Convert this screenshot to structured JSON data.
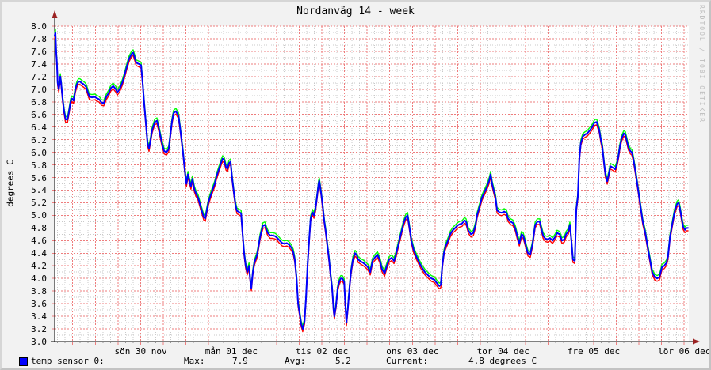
{
  "title": "Nordanväg 14 - week",
  "watermark": "RRDTOOL / TOBI OETIKER",
  "colors": {
    "background": "#f2f2f2",
    "plot_background": "#ffffff",
    "axis": "#000000",
    "arrow": "#9b2222",
    "grid_major": "#ee7d7d",
    "grid_minor": "#c9c9c9",
    "series_avg": "#0000ff",
    "series_max": "#00ff00",
    "series_min": "#ff0000"
  },
  "chart_data": {
    "type": "line",
    "title": "Nordanväg 14 - week",
    "ylabel": "degrees C",
    "ylim": [
      3.0,
      8.0
    ],
    "y_major_step": 0.2,
    "y_minor_step": 0.1,
    "y_tick_labels": [
      "8.0",
      "7.8",
      "7.6",
      "7.4",
      "7.2",
      "7.0",
      "6.8",
      "6.6",
      "6.4",
      "6.2",
      "6.0",
      "5.8",
      "5.6",
      "5.4",
      "5.2",
      "5.0",
      "4.8",
      "4.6",
      "4.4",
      "4.2",
      "4.0",
      "3.8",
      "3.6",
      "3.4",
      "3.2",
      "3.0"
    ],
    "x_axis": {
      "unit": "time",
      "span_hours": 168,
      "t0_abs_hour": 13.23,
      "minor_grid_hours": 2,
      "major_grid_hours": 6,
      "day_labels": [
        {
          "label": "sön 30 nov",
          "noon_hour": 22.8
        },
        {
          "label": "mån 01 dec",
          "noon_hour": 46.8
        },
        {
          "label": "tis 02 dec",
          "noon_hour": 70.8
        },
        {
          "label": "ons 03 dec",
          "noon_hour": 94.8
        },
        {
          "label": "tor 04 dec",
          "noon_hour": 118.8
        },
        {
          "label": "fre 05 dec",
          "noon_hour": 142.8
        },
        {
          "label": "lör 06 dec",
          "noon_hour": 166.8
        }
      ]
    },
    "legend": {
      "swatch_color": "#0000ff",
      "label": "temp sensor 0:",
      "max_label": "Max:",
      "max_value": "7.9",
      "avg_label": "Avg:",
      "avg_value": "5.2",
      "current_label": "Current:",
      "current_value": "4.8 degrees C"
    },
    "series": [
      {
        "name": "temp sensor 0 (max)",
        "color": "#00ff00",
        "value_offset": 0.045,
        "width": 1.4
      },
      {
        "name": "temp sensor 0 (min)",
        "color": "#ff0000",
        "value_offset": -0.045,
        "width": 1.4
      },
      {
        "name": "temp sensor 0 (avg)",
        "color": "#0000ff",
        "value_offset": 0,
        "width": 2
      }
    ],
    "points_hours_temp": [
      [
        0.0,
        7.85
      ],
      [
        0.2,
        7.9
      ],
      [
        0.4,
        7.6
      ],
      [
        0.6,
        7.4
      ],
      [
        0.8,
        7.1
      ],
      [
        1.1,
        7.0
      ],
      [
        1.3,
        7.1
      ],
      [
        1.5,
        7.2
      ],
      [
        1.7,
        7.1
      ],
      [
        2.1,
        6.85
      ],
      [
        2.5,
        6.65
      ],
      [
        2.9,
        6.52
      ],
      [
        3.4,
        6.52
      ],
      [
        3.8,
        6.65
      ],
      [
        4.2,
        6.8
      ],
      [
        4.6,
        6.85
      ],
      [
        5.0,
        6.82
      ],
      [
        5.5,
        7.0
      ],
      [
        5.9,
        7.08
      ],
      [
        6.3,
        7.12
      ],
      [
        6.7,
        7.12
      ],
      [
        7.1,
        7.1
      ],
      [
        7.6,
        7.08
      ],
      [
        8.0,
        7.06
      ],
      [
        8.4,
        7.03
      ],
      [
        8.8,
        6.95
      ],
      [
        9.2,
        6.88
      ],
      [
        9.9,
        6.87
      ],
      [
        10.5,
        6.88
      ],
      [
        11.1,
        6.86
      ],
      [
        11.8,
        6.84
      ],
      [
        12.4,
        6.79
      ],
      [
        13.0,
        6.78
      ],
      [
        13.7,
        6.88
      ],
      [
        14.3,
        6.94
      ],
      [
        14.9,
        7.02
      ],
      [
        15.5,
        7.05
      ],
      [
        16.2,
        7.0
      ],
      [
        16.6,
        6.95
      ],
      [
        17.2,
        7.0
      ],
      [
        17.9,
        7.1
      ],
      [
        18.5,
        7.22
      ],
      [
        19.1,
        7.36
      ],
      [
        19.7,
        7.48
      ],
      [
        20.4,
        7.56
      ],
      [
        20.8,
        7.58
      ],
      [
        21.2,
        7.5
      ],
      [
        21.6,
        7.42
      ],
      [
        22.3,
        7.4
      ],
      [
        22.9,
        7.38
      ],
      [
        23.3,
        7.1
      ],
      [
        23.7,
        6.78
      ],
      [
        24.2,
        6.44
      ],
      [
        24.6,
        6.15
      ],
      [
        25.0,
        6.06
      ],
      [
        25.4,
        6.2
      ],
      [
        25.8,
        6.35
      ],
      [
        26.5,
        6.48
      ],
      [
        27.1,
        6.5
      ],
      [
        27.7,
        6.35
      ],
      [
        28.4,
        6.15
      ],
      [
        29.0,
        6.02
      ],
      [
        29.6,
        6.0
      ],
      [
        30.2,
        6.05
      ],
      [
        30.7,
        6.3
      ],
      [
        31.1,
        6.5
      ],
      [
        31.5,
        6.62
      ],
      [
        32.1,
        6.65
      ],
      [
        32.8,
        6.58
      ],
      [
        33.2,
        6.4
      ],
      [
        33.6,
        6.2
      ],
      [
        34.0,
        6.0
      ],
      [
        34.4,
        5.75
      ],
      [
        34.9,
        5.5
      ],
      [
        35.3,
        5.65
      ],
      [
        35.7,
        5.55
      ],
      [
        36.1,
        5.46
      ],
      [
        36.5,
        5.58
      ],
      [
        37.0,
        5.42
      ],
      [
        37.4,
        5.35
      ],
      [
        38.0,
        5.28
      ],
      [
        38.6,
        5.15
      ],
      [
        39.1,
        5.05
      ],
      [
        39.5,
        4.97
      ],
      [
        39.9,
        4.95
      ],
      [
        40.3,
        5.08
      ],
      [
        40.7,
        5.2
      ],
      [
        41.2,
        5.3
      ],
      [
        41.8,
        5.4
      ],
      [
        42.4,
        5.5
      ],
      [
        42.8,
        5.6
      ],
      [
        43.5,
        5.73
      ],
      [
        44.1,
        5.84
      ],
      [
        44.5,
        5.9
      ],
      [
        44.9,
        5.88
      ],
      [
        45.4,
        5.76
      ],
      [
        45.8,
        5.74
      ],
      [
        46.2,
        5.83
      ],
      [
        46.6,
        5.85
      ],
      [
        47.0,
        5.6
      ],
      [
        47.5,
        5.35
      ],
      [
        47.9,
        5.17
      ],
      [
        48.3,
        5.07
      ],
      [
        48.9,
        5.05
      ],
      [
        49.4,
        5.03
      ],
      [
        49.8,
        4.7
      ],
      [
        50.2,
        4.4
      ],
      [
        50.6,
        4.2
      ],
      [
        51.0,
        4.1
      ],
      [
        51.5,
        4.2
      ],
      [
        51.9,
        3.92
      ],
      [
        52.1,
        3.85
      ],
      [
        52.5,
        4.1
      ],
      [
        52.9,
        4.25
      ],
      [
        53.6,
        4.37
      ],
      [
        54.0,
        4.5
      ],
      [
        54.4,
        4.65
      ],
      [
        54.8,
        4.76
      ],
      [
        55.2,
        4.84
      ],
      [
        55.7,
        4.85
      ],
      [
        56.1,
        4.78
      ],
      [
        56.5,
        4.72
      ],
      [
        57.1,
        4.68
      ],
      [
        57.8,
        4.68
      ],
      [
        58.4,
        4.67
      ],
      [
        59.0,
        4.64
      ],
      [
        59.6,
        4.6
      ],
      [
        60.3,
        4.56
      ],
      [
        60.9,
        4.55
      ],
      [
        61.5,
        4.56
      ],
      [
        62.2,
        4.53
      ],
      [
        62.8,
        4.48
      ],
      [
        63.2,
        4.42
      ],
      [
        63.6,
        4.3
      ],
      [
        64.1,
        4.0
      ],
      [
        64.5,
        3.6
      ],
      [
        64.9,
        3.45
      ],
      [
        65.3,
        3.28
      ],
      [
        65.7,
        3.2
      ],
      [
        66.2,
        3.32
      ],
      [
        66.6,
        3.7
      ],
      [
        67.0,
        4.2
      ],
      [
        67.4,
        4.6
      ],
      [
        67.8,
        4.95
      ],
      [
        68.3,
        5.05
      ],
      [
        68.7,
        5.0
      ],
      [
        69.1,
        5.1
      ],
      [
        69.5,
        5.3
      ],
      [
        69.9,
        5.5
      ],
      [
        70.1,
        5.55
      ],
      [
        70.6,
        5.35
      ],
      [
        71.0,
        5.15
      ],
      [
        71.4,
        4.92
      ],
      [
        71.8,
        4.75
      ],
      [
        72.2,
        4.55
      ],
      [
        72.7,
        4.3
      ],
      [
        73.1,
        4.05
      ],
      [
        73.5,
        3.85
      ],
      [
        73.9,
        3.5
      ],
      [
        74.1,
        3.4
      ],
      [
        74.6,
        3.6
      ],
      [
        75.0,
        3.85
      ],
      [
        75.4,
        3.95
      ],
      [
        75.8,
        4.0
      ],
      [
        76.2,
        4.0
      ],
      [
        76.7,
        3.95
      ],
      [
        77.1,
        3.5
      ],
      [
        77.3,
        3.3
      ],
      [
        77.7,
        3.55
      ],
      [
        78.1,
        3.85
      ],
      [
        78.5,
        4.1
      ],
      [
        79.0,
        4.3
      ],
      [
        79.6,
        4.4
      ],
      [
        80.0,
        4.37
      ],
      [
        80.4,
        4.3
      ],
      [
        81.1,
        4.27
      ],
      [
        81.7,
        4.25
      ],
      [
        82.3,
        4.22
      ],
      [
        83.0,
        4.18
      ],
      [
        83.6,
        4.1
      ],
      [
        84.2,
        4.28
      ],
      [
        84.8,
        4.33
      ],
      [
        85.5,
        4.38
      ],
      [
        86.1,
        4.3
      ],
      [
        86.7,
        4.15
      ],
      [
        87.4,
        4.08
      ],
      [
        88.0,
        4.2
      ],
      [
        88.6,
        4.3
      ],
      [
        89.3,
        4.33
      ],
      [
        89.9,
        4.28
      ],
      [
        90.5,
        4.4
      ],
      [
        91.1,
        4.55
      ],
      [
        91.8,
        4.72
      ],
      [
        92.4,
        4.87
      ],
      [
        93.0,
        4.97
      ],
      [
        93.5,
        5.0
      ],
      [
        93.9,
        4.85
      ],
      [
        94.5,
        4.6
      ],
      [
        95.1,
        4.45
      ],
      [
        95.8,
        4.35
      ],
      [
        96.6,
        4.25
      ],
      [
        97.2,
        4.18
      ],
      [
        98.1,
        4.1
      ],
      [
        98.9,
        4.05
      ],
      [
        99.8,
        4.0
      ],
      [
        100.6,
        3.98
      ],
      [
        101.2,
        3.93
      ],
      [
        101.9,
        3.88
      ],
      [
        102.3,
        3.9
      ],
      [
        102.7,
        4.2
      ],
      [
        103.1,
        4.4
      ],
      [
        103.5,
        4.5
      ],
      [
        104.2,
        4.6
      ],
      [
        104.8,
        4.7
      ],
      [
        105.4,
        4.76
      ],
      [
        106.1,
        4.8
      ],
      [
        106.7,
        4.84
      ],
      [
        107.3,
        4.86
      ],
      [
        107.9,
        4.87
      ],
      [
        108.6,
        4.92
      ],
      [
        109.0,
        4.9
      ],
      [
        109.6,
        4.76
      ],
      [
        110.3,
        4.7
      ],
      [
        110.9,
        4.72
      ],
      [
        111.5,
        4.85
      ],
      [
        111.9,
        5.0
      ],
      [
        112.6,
        5.15
      ],
      [
        113.2,
        5.28
      ],
      [
        113.8,
        5.36
      ],
      [
        114.5,
        5.45
      ],
      [
        115.1,
        5.55
      ],
      [
        115.5,
        5.65
      ],
      [
        115.9,
        5.5
      ],
      [
        116.3,
        5.4
      ],
      [
        116.8,
        5.28
      ],
      [
        117.2,
        5.08
      ],
      [
        117.8,
        5.05
      ],
      [
        118.4,
        5.04
      ],
      [
        119.1,
        5.06
      ],
      [
        119.7,
        5.04
      ],
      [
        120.1,
        4.95
      ],
      [
        120.8,
        4.9
      ],
      [
        121.4,
        4.88
      ],
      [
        122.0,
        4.8
      ],
      [
        122.6,
        4.66
      ],
      [
        123.1,
        4.56
      ],
      [
        123.7,
        4.7
      ],
      [
        124.1,
        4.68
      ],
      [
        124.5,
        4.6
      ],
      [
        124.9,
        4.5
      ],
      [
        125.4,
        4.4
      ],
      [
        126.0,
        4.38
      ],
      [
        126.6,
        4.55
      ],
      [
        127.3,
        4.85
      ],
      [
        127.9,
        4.9
      ],
      [
        128.5,
        4.9
      ],
      [
        128.9,
        4.8
      ],
      [
        129.4,
        4.68
      ],
      [
        130.0,
        4.63
      ],
      [
        130.6,
        4.62
      ],
      [
        131.2,
        4.64
      ],
      [
        131.9,
        4.6
      ],
      [
        132.5,
        4.65
      ],
      [
        133.1,
        4.72
      ],
      [
        133.8,
        4.7
      ],
      [
        134.4,
        4.6
      ],
      [
        135.0,
        4.62
      ],
      [
        135.5,
        4.7
      ],
      [
        136.1,
        4.75
      ],
      [
        136.5,
        4.85
      ],
      [
        136.9,
        4.6
      ],
      [
        137.3,
        4.3
      ],
      [
        137.8,
        4.28
      ],
      [
        138.2,
        5.1
      ],
      [
        138.6,
        5.3
      ],
      [
        139.0,
        5.9
      ],
      [
        139.4,
        6.15
      ],
      [
        139.9,
        6.25
      ],
      [
        140.5,
        6.28
      ],
      [
        141.1,
        6.3
      ],
      [
        141.8,
        6.35
      ],
      [
        142.4,
        6.4
      ],
      [
        143.0,
        6.47
      ],
      [
        143.6,
        6.48
      ],
      [
        144.3,
        6.35
      ],
      [
        144.7,
        6.2
      ],
      [
        145.1,
        6.08
      ],
      [
        145.5,
        5.85
      ],
      [
        145.9,
        5.65
      ],
      [
        146.4,
        5.54
      ],
      [
        146.8,
        5.65
      ],
      [
        147.2,
        5.78
      ],
      [
        147.8,
        5.76
      ],
      [
        148.5,
        5.73
      ],
      [
        148.9,
        5.8
      ],
      [
        149.3,
        5.92
      ],
      [
        149.7,
        6.08
      ],
      [
        150.2,
        6.22
      ],
      [
        150.8,
        6.3
      ],
      [
        151.2,
        6.28
      ],
      [
        151.6,
        6.18
      ],
      [
        152.0,
        6.08
      ],
      [
        152.5,
        6.02
      ],
      [
        152.9,
        6.0
      ],
      [
        153.3,
        5.9
      ],
      [
        153.9,
        5.68
      ],
      [
        154.6,
        5.4
      ],
      [
        155.2,
        5.15
      ],
      [
        155.8,
        4.9
      ],
      [
        156.5,
        4.72
      ],
      [
        157.1,
        4.5
      ],
      [
        157.7,
        4.3
      ],
      [
        158.3,
        4.1
      ],
      [
        159.0,
        4.02
      ],
      [
        159.6,
        4.0
      ],
      [
        160.2,
        4.02
      ],
      [
        160.9,
        4.18
      ],
      [
        161.5,
        4.2
      ],
      [
        162.1,
        4.25
      ],
      [
        162.5,
        4.35
      ],
      [
        163.0,
        4.65
      ],
      [
        163.6,
        4.85
      ],
      [
        164.2,
        5.05
      ],
      [
        164.9,
        5.18
      ],
      [
        165.3,
        5.2
      ],
      [
        165.7,
        5.1
      ],
      [
        166.1,
        4.95
      ],
      [
        166.5,
        4.82
      ],
      [
        167.0,
        4.77
      ],
      [
        167.4,
        4.8
      ],
      [
        167.8,
        4.8
      ]
    ]
  }
}
